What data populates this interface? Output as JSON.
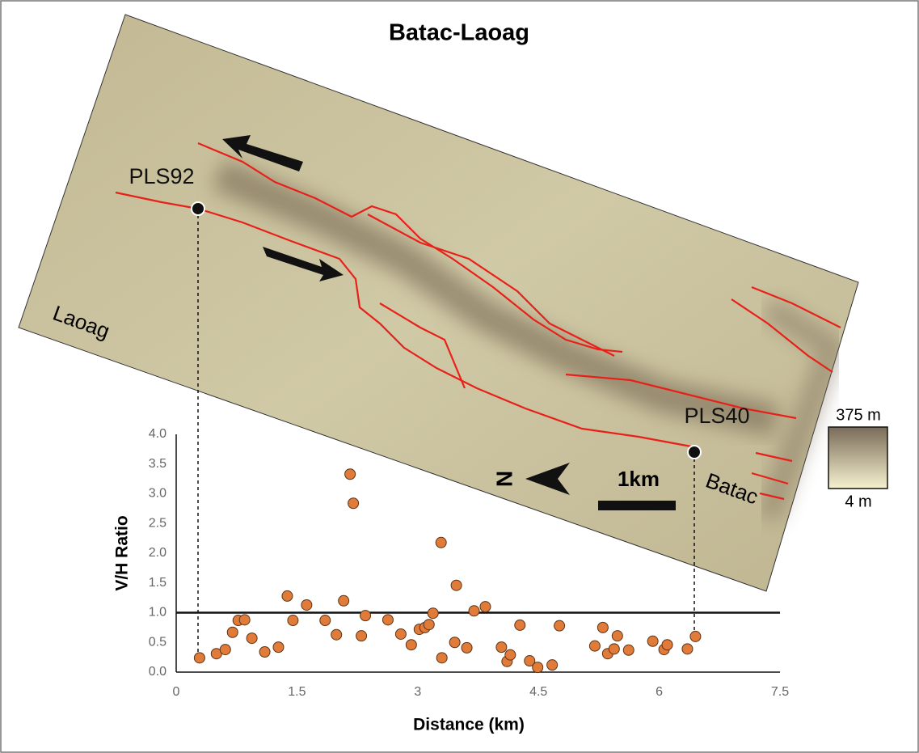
{
  "chart_data": {
    "type": "scatter",
    "title": "Batac-Laoag",
    "xlabel": "Distance (km)",
    "ylabel": "V/H Ratio",
    "x": [
      0.29,
      0.5,
      0.61,
      0.7,
      0.77,
      0.85,
      0.94,
      1.1,
      1.27,
      1.38,
      1.45,
      1.62,
      1.85,
      1.99,
      2.08,
      2.16,
      2.2,
      2.3,
      2.35,
      2.63,
      2.79,
      2.92,
      3.02,
      3.09,
      3.14,
      3.19,
      3.29,
      3.3,
      3.46,
      3.48,
      3.61,
      3.7,
      3.84,
      4.04,
      4.11,
      4.15,
      4.27,
      4.39,
      4.49,
      4.67,
      4.76,
      5.2,
      5.3,
      5.36,
      5.44,
      5.48,
      5.62,
      5.92,
      6.06,
      6.1,
      6.35,
      6.45
    ],
    "values": [
      0.24,
      0.31,
      0.38,
      0.67,
      0.87,
      0.88,
      0.57,
      0.34,
      0.42,
      1.28,
      0.87,
      1.13,
      0.87,
      0.63,
      1.2,
      3.33,
      2.84,
      0.61,
      0.95,
      0.88,
      0.64,
      0.46,
      0.72,
      0.75,
      0.8,
      0.99,
      2.18,
      0.24,
      0.5,
      1.46,
      0.41,
      1.03,
      1.1,
      0.42,
      0.18,
      0.29,
      0.79,
      0.19,
      0.08,
      0.12,
      0.78,
      0.44,
      0.75,
      0.31,
      0.39,
      0.61,
      0.37,
      0.52,
      0.38,
      0.46,
      0.39,
      0.6
    ],
    "color": "#e07b39",
    "xlim": [
      0,
      7.5
    ],
    "xticks": [
      0,
      1.5,
      3,
      4.5,
      6,
      7.5
    ],
    "ylim": [
      0,
      4
    ],
    "yticks": [
      {
        "value": 0,
        "label": "0.0"
      },
      {
        "value": 0.5,
        "label": "0.5"
      },
      {
        "value": 1,
        "label": "1.0"
      },
      {
        "value": 1.5,
        "label": "1.5"
      },
      {
        "value": 2,
        "label": "2.0"
      },
      {
        "value": 2.5,
        "label": "2.5"
      },
      {
        "value": 3,
        "label": "3.0"
      },
      {
        "value": 3.5,
        "label": "3.5"
      },
      {
        "value": 4,
        "label": "4.0"
      }
    ],
    "hline": 1
  },
  "map": {
    "place_left": "Laoag",
    "place_right": "Batac",
    "site_left": "PLS92",
    "site_right": "PLS40",
    "north_label": "N",
    "scale_label": "1km",
    "legend_max": "375 m",
    "legend_min": "4 m"
  }
}
